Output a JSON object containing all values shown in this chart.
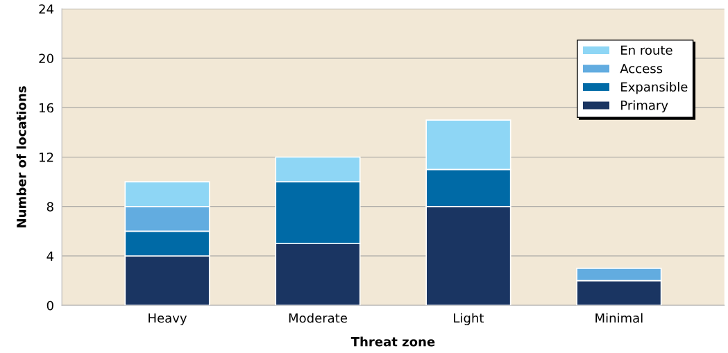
{
  "chart_data": {
    "type": "bar",
    "stacked": true,
    "xlabel": "Threat zone",
    "ylabel": "Number of locations",
    "categories": [
      "Heavy",
      "Moderate",
      "Light",
      "Minimal"
    ],
    "series": [
      {
        "name": "Primary",
        "color": "#1a3562",
        "values": [
          4,
          5,
          8,
          2
        ]
      },
      {
        "name": "Expansible",
        "color": "#006aa6",
        "values": [
          2,
          5,
          3,
          0
        ]
      },
      {
        "name": "Access",
        "color": "#62ace0",
        "values": [
          2,
          0,
          0,
          1
        ]
      },
      {
        "name": "En route",
        "color": "#8ed6f5",
        "values": [
          2,
          2,
          4,
          0
        ]
      }
    ],
    "ylim": [
      0,
      24
    ],
    "yticks": [
      0,
      4,
      8,
      12,
      16,
      20,
      24
    ],
    "grid": "y",
    "legend": "top right"
  }
}
